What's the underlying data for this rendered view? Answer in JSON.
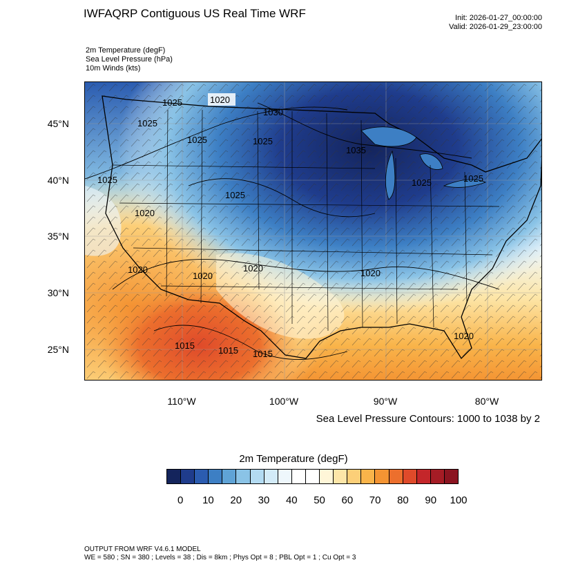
{
  "header": {
    "title": "IWFAQRP Contiguous US Real Time WRF",
    "init": "Init: 2026-01-27_00:00:00",
    "valid": "Valid: 2026-01-29_23:00:00"
  },
  "variables": [
    "2m Temperature   (degF)",
    "Sea Level Pressure   (hPa)",
    "10m Winds   (kts)"
  ],
  "map": {
    "lat_labels": [
      "45°N",
      "40°N",
      "35°N",
      "30°N",
      "25°N"
    ],
    "lon_labels": [
      "110°W",
      "100°W",
      "90°W",
      "80°W"
    ],
    "pressure_labels": [
      "1020",
      "1025",
      "1025",
      "1030",
      "1025",
      "1025",
      "1035",
      "1025",
      "1025",
      "1025",
      "1025",
      "1020",
      "1020",
      "1020",
      "1020",
      "1020",
      "1015",
      "1015",
      "1015",
      "1020"
    ],
    "colors": {
      "cold": "#1b2a66",
      "mid": "#ffffff",
      "warm": "#f4a63f",
      "hot": "#d9472b"
    }
  },
  "contour_info": "Sea Level Pressure Contours: 1000 to 1038 by 2",
  "colorbar": {
    "title": "2m Temperature  (degF)",
    "colors": [
      "#14245c",
      "#1f3c8c",
      "#2b5cb0",
      "#3d7fc4",
      "#5fa3d6",
      "#8ac3e6",
      "#b3dbf2",
      "#d3ebf8",
      "#eef7fc",
      "#ffffff",
      "#ffffff",
      "#fff6d8",
      "#fde6a8",
      "#fccf78",
      "#f9b44a",
      "#f49433",
      "#ec6f2d",
      "#df4a2a",
      "#c4262a",
      "#a51c25",
      "#8b1420"
    ],
    "ticks": [
      "0",
      "10",
      "20",
      "30",
      "40",
      "50",
      "60",
      "70",
      "80",
      "90",
      "100"
    ]
  },
  "footer": {
    "line1": "OUTPUT FROM WRF V4.6.1 MODEL",
    "line2": "WE = 580 ; SN = 380 ; Levels = 38 ; Dis = 8km ; Phys Opt = 8 ; PBL Opt = 1 ; Cu Opt = 3"
  }
}
